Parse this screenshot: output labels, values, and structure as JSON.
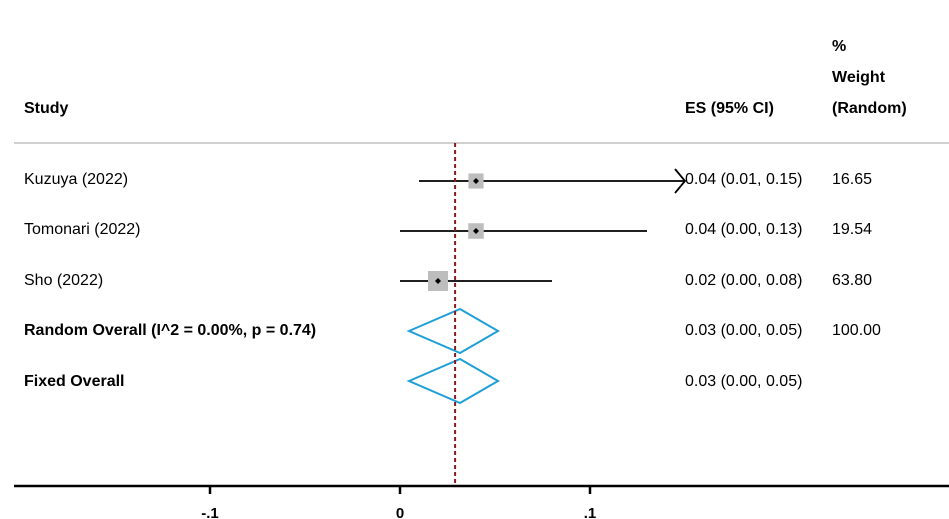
{
  "header": {
    "study": "Study",
    "es": "ES (95% CI)",
    "weight_line1": "%",
    "weight_line2": "Weight",
    "weight_line3": "(Random)"
  },
  "chart_data": {
    "type": "forest",
    "xlim": [
      -0.2,
      0.29
    ],
    "xticks": [
      -0.1,
      0,
      0.1
    ],
    "xtick_labels": [
      "-.1",
      "0",
      ".1"
    ],
    "reference_line": 0.029,
    "studies": [
      {
        "label": "Kuzuya (2022)",
        "es": 0.04,
        "lo": 0.01,
        "hi": 0.15,
        "es_text": "0.04 (0.01, 0.15)",
        "weight_text": "16.65",
        "weight": 16.65,
        "arrow_right": true
      },
      {
        "label": "Tomonari (2022)",
        "es": 0.04,
        "lo": 0.0,
        "hi": 0.13,
        "es_text": "0.04 (0.00, 0.13)",
        "weight_text": "19.54",
        "weight": 19.54,
        "arrow_right": false
      },
      {
        "label": "Sho (2022)",
        "es": 0.02,
        "lo": 0.0,
        "hi": 0.08,
        "es_text": "0.02 (0.00, 0.08)",
        "weight_text": "63.80",
        "weight": 63.8,
        "arrow_right": false
      }
    ],
    "overall": [
      {
        "label": "Random Overall  (I^2 = 0.00%, p = 0.74)",
        "es": 0.03,
        "lo": 0.0,
        "hi": 0.05,
        "es_text": "0.03 (0.00, 0.05)",
        "weight_text": "100.00"
      },
      {
        "label": "Fixed Overall",
        "es": 0.03,
        "lo": 0.0,
        "hi": 0.05,
        "es_text": "0.03 (0.00, 0.05)",
        "weight_text": ""
      }
    ],
    "colors": {
      "ci_line": "#000000",
      "box": "#bdbdbd",
      "diamond": "#1ea0d6",
      "ref_line": "#8b1a1a",
      "divider": "#c0c0c0"
    }
  }
}
